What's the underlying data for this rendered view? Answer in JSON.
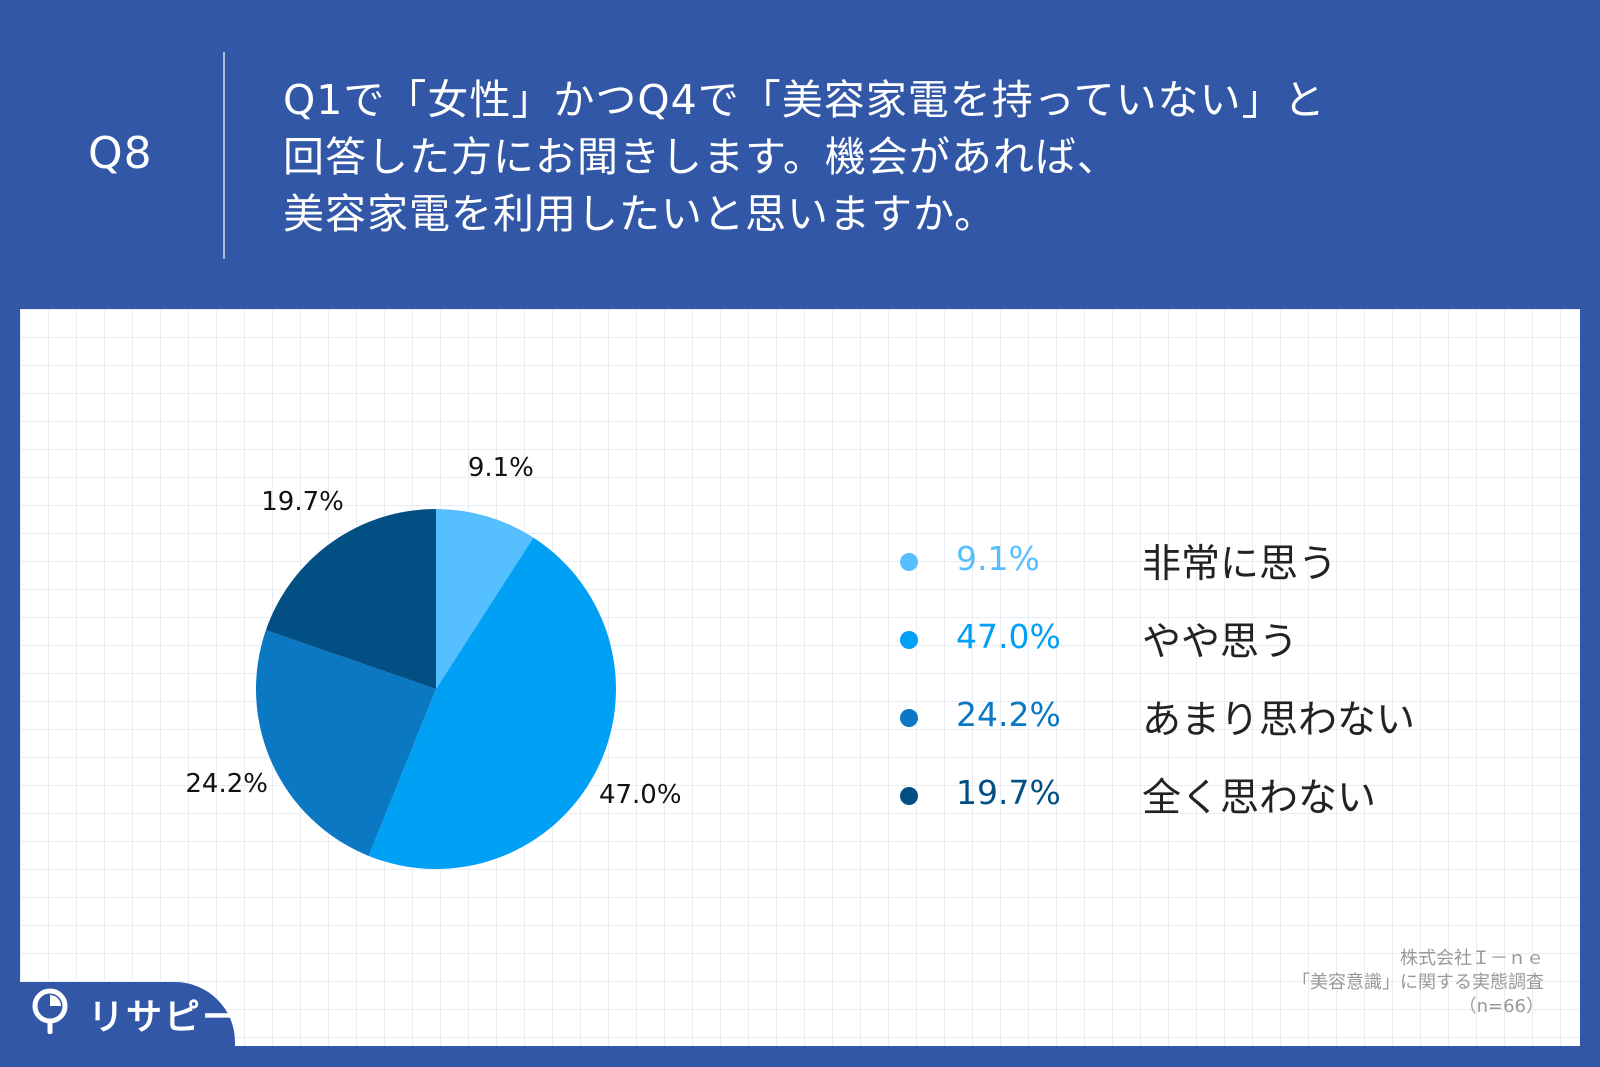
{
  "header": {
    "question_number": "Q8",
    "question_lines": [
      "Q1で「女性」かつQ4で「美容家電を持っていない」と",
      "回答した方にお聞きします。機会があれば、",
      "美容家電を利用したいと思いますか。"
    ]
  },
  "chart_data": {
    "type": "pie",
    "start_angle_deg": 0,
    "direction": "clockwise",
    "categories": [
      "非常に思う",
      "やや思う",
      "あまり思わない",
      "全く思わない"
    ],
    "values": [
      9.1,
      47.0,
      24.2,
      19.7
    ],
    "value_labels": [
      "9.1%",
      "47.0%",
      "24.2%",
      "19.7%"
    ],
    "colors": [
      "#55bfff",
      "#00a0f5",
      "#0a78c2",
      "#024f84"
    ],
    "legend_position": "right"
  },
  "source": {
    "company": "株式会社Ｉ－ｎｅ",
    "survey": "「美容意識」に関する実態調査",
    "sample": "（n=66）"
  },
  "logo": {
    "text": "リサピー",
    "icon": "pin-pie-icon"
  }
}
